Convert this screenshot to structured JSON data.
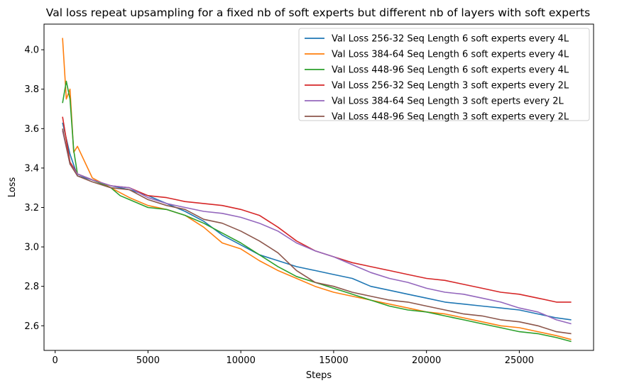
{
  "chart_data": {
    "type": "line",
    "title": "Val loss repeat upsampling for a fixed nb of soft experts but different nb of layers with soft experts",
    "xlabel": "Steps",
    "ylabel": "Loss",
    "xlim": [
      -600,
      29000
    ],
    "ylim": [
      2.475,
      4.13
    ],
    "xticks": [
      0,
      5000,
      10000,
      15000,
      20000,
      25000
    ],
    "yticks": [
      2.6,
      2.8,
      3.0,
      3.2,
      3.4,
      3.6,
      3.8,
      4.0
    ],
    "xtick_labels": [
      "0",
      "5000",
      "10000",
      "15000",
      "20000",
      "25000"
    ],
    "ytick_labels": [
      "2.6",
      "2.8",
      "3.0",
      "3.2",
      "3.4",
      "3.6",
      "3.8",
      "4.0"
    ],
    "grid": false,
    "legend_position": "upper right",
    "series": [
      {
        "name": "Val Loss 256-32 Seq Length 6 soft experts every 4L",
        "color": "#1f77b4",
        "x": [
          400,
          800,
          1200,
          2000,
          3000,
          4000,
          5000,
          6000,
          7000,
          8000,
          9000,
          10000,
          11000,
          12000,
          13000,
          14000,
          15000,
          16000,
          17000,
          18000,
          19000,
          20000,
          21000,
          22000,
          23000,
          24000,
          25000,
          26000,
          27000,
          27800
        ],
        "y": [
          3.63,
          3.47,
          3.36,
          3.34,
          3.31,
          3.29,
          3.26,
          3.22,
          3.18,
          3.13,
          3.06,
          3.01,
          2.96,
          2.93,
          2.9,
          2.88,
          2.86,
          2.84,
          2.8,
          2.78,
          2.76,
          2.74,
          2.72,
          2.71,
          2.7,
          2.69,
          2.68,
          2.66,
          2.64,
          2.63
        ]
      },
      {
        "name": "Val Loss 384-64 Seq Length 6 soft experts every 4L",
        "color": "#ff7f0e",
        "x": [
          400,
          600,
          800,
          1000,
          1200,
          2000,
          3000,
          4000,
          5000,
          6000,
          7000,
          8000,
          9000,
          10000,
          11000,
          12000,
          13000,
          14000,
          15000,
          16000,
          17000,
          18000,
          19000,
          20000,
          21000,
          22000,
          23000,
          24000,
          25000,
          26000,
          27000,
          27800
        ],
        "y": [
          4.06,
          3.75,
          3.8,
          3.48,
          3.51,
          3.35,
          3.3,
          3.25,
          3.21,
          3.19,
          3.16,
          3.1,
          3.02,
          2.99,
          2.93,
          2.88,
          2.84,
          2.8,
          2.77,
          2.75,
          2.73,
          2.71,
          2.69,
          2.67,
          2.66,
          2.64,
          2.62,
          2.6,
          2.59,
          2.57,
          2.55,
          2.53
        ]
      },
      {
        "name": "Val Loss 448-96 Seq Length 6 soft experts every 4L",
        "color": "#2ca02c",
        "x": [
          400,
          600,
          800,
          1000,
          1200,
          2000,
          3000,
          3500,
          4000,
          5000,
          6000,
          7000,
          8000,
          9000,
          10000,
          11000,
          12000,
          13000,
          14000,
          15000,
          16000,
          17000,
          18000,
          19000,
          20000,
          21000,
          22000,
          23000,
          24000,
          25000,
          26000,
          27000,
          27800
        ],
        "y": [
          3.73,
          3.84,
          3.75,
          3.49,
          3.37,
          3.34,
          3.3,
          3.26,
          3.24,
          3.2,
          3.19,
          3.16,
          3.12,
          3.07,
          3.02,
          2.96,
          2.9,
          2.85,
          2.82,
          2.79,
          2.76,
          2.73,
          2.7,
          2.68,
          2.67,
          2.65,
          2.63,
          2.61,
          2.59,
          2.57,
          2.56,
          2.54,
          2.52
        ]
      },
      {
        "name": "Val Loss 256-32 Seq Length 3 soft experts every 2L",
        "color": "#d62728",
        "x": [
          400,
          800,
          1200,
          2000,
          3000,
          4000,
          5000,
          6000,
          7000,
          8000,
          9000,
          10000,
          11000,
          12000,
          13000,
          14000,
          15000,
          16000,
          17000,
          18000,
          19000,
          20000,
          21000,
          22000,
          23000,
          24000,
          25000,
          26000,
          27000,
          27800
        ],
        "y": [
          3.66,
          3.43,
          3.37,
          3.34,
          3.31,
          3.3,
          3.26,
          3.25,
          3.23,
          3.22,
          3.21,
          3.19,
          3.16,
          3.1,
          3.03,
          2.98,
          2.95,
          2.92,
          2.9,
          2.88,
          2.86,
          2.84,
          2.83,
          2.81,
          2.79,
          2.77,
          2.76,
          2.74,
          2.72,
          2.72
        ]
      },
      {
        "name": "Val Loss 384-64 Seq Length 3 soft eperts every 2L",
        "color": "#9467bd",
        "x": [
          400,
          800,
          1200,
          2000,
          3000,
          4000,
          5000,
          6000,
          7000,
          8000,
          9000,
          10000,
          11000,
          12000,
          13000,
          14000,
          15000,
          16000,
          17000,
          18000,
          19000,
          20000,
          21000,
          22000,
          23000,
          24000,
          25000,
          26000,
          27000,
          27800
        ],
        "y": [
          3.59,
          3.42,
          3.37,
          3.34,
          3.31,
          3.3,
          3.25,
          3.22,
          3.2,
          3.18,
          3.17,
          3.15,
          3.12,
          3.08,
          3.02,
          2.98,
          2.95,
          2.91,
          2.87,
          2.84,
          2.82,
          2.79,
          2.77,
          2.76,
          2.74,
          2.72,
          2.69,
          2.67,
          2.63,
          2.61
        ]
      },
      {
        "name": "Val Loss 448-96 Seq Length 3 soft experts every 2L",
        "color": "#8c564b",
        "x": [
          400,
          800,
          1200,
          2000,
          3000,
          4000,
          5000,
          6000,
          7000,
          8000,
          9000,
          10000,
          11000,
          12000,
          13000,
          14000,
          15000,
          16000,
          17000,
          18000,
          19000,
          20000,
          21000,
          22000,
          23000,
          24000,
          25000,
          26000,
          27000,
          27800
        ],
        "y": [
          3.6,
          3.42,
          3.36,
          3.33,
          3.3,
          3.29,
          3.24,
          3.21,
          3.19,
          3.14,
          3.12,
          3.08,
          3.03,
          2.97,
          2.88,
          2.82,
          2.8,
          2.77,
          2.75,
          2.73,
          2.72,
          2.7,
          2.68,
          2.66,
          2.65,
          2.63,
          2.62,
          2.6,
          2.57,
          2.56
        ]
      }
    ]
  }
}
